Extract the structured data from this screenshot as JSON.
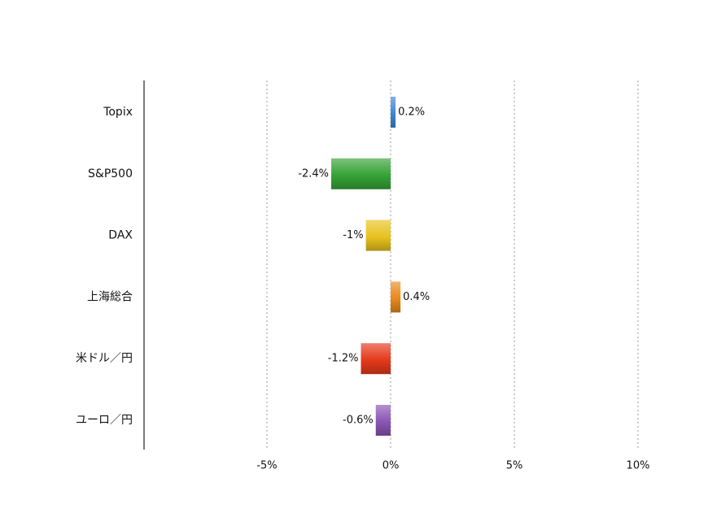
{
  "chart_data": {
    "type": "bar",
    "orientation": "horizontal",
    "categories": [
      "Topix",
      "S&P500",
      "DAX",
      "上海総合",
      "米ドル／円",
      "ユーロ／円"
    ],
    "values": [
      0.2,
      -2.4,
      -1,
      0.4,
      -1.2,
      -0.6
    ],
    "data_labels": [
      "0.2%",
      "-2.4%",
      "-1%",
      "0.4%",
      "-1.2%",
      "-0.6%"
    ],
    "colors": [
      "#3f86d4",
      "#35a336",
      "#e7c21f",
      "#e8891c",
      "#e5391b",
      "#8a55b3"
    ],
    "x_ticks": [
      -5,
      0,
      5,
      10
    ],
    "x_tick_labels": [
      "-5%",
      "0%",
      "5%",
      "10%"
    ],
    "xlim": [
      -10,
      10
    ],
    "grid": true,
    "legend": "none",
    "title": "",
    "xlabel": "",
    "ylabel": ""
  }
}
